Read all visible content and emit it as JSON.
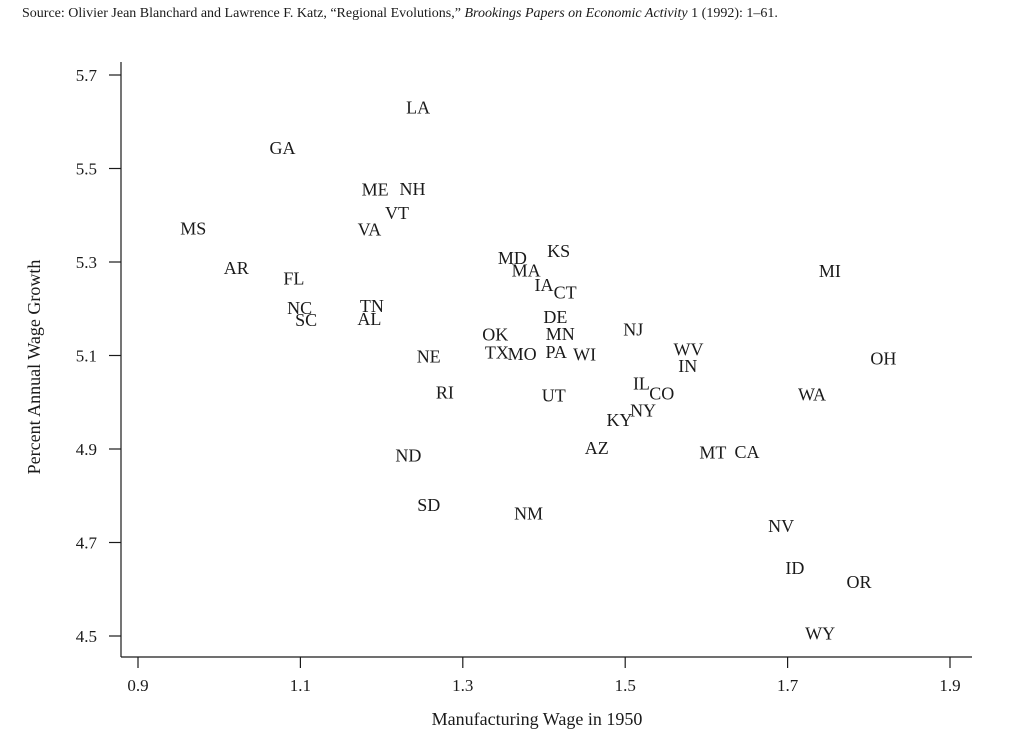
{
  "source": {
    "prefix": "Source: Olivier Jean Blanchard and Lawrence F. Katz, “Regional Evolutions,” ",
    "journal": "Brookings Papers on Economic Activity",
    "suffix": " 1 (1992): 1–61."
  },
  "chart_data": {
    "type": "scatter",
    "xlabel": "Manufacturing Wage in 1950",
    "ylabel": "Percent Annual Wage Growth",
    "xlim": [
      0.9,
      1.9
    ],
    "ylim": [
      4.5,
      5.7
    ],
    "xticks": [
      "0.9",
      "1.1",
      "1.3",
      "1.5",
      "1.7",
      "1.9"
    ],
    "yticks": [
      "4.5",
      "4.7",
      "4.9",
      "5.1",
      "5.3",
      "5.5",
      "5.7"
    ],
    "grid": false,
    "points": [
      {
        "label": "LA",
        "x": 1.245,
        "y": 5.63
      },
      {
        "label": "GA",
        "x": 1.078,
        "y": 5.544
      },
      {
        "label": "ME",
        "x": 1.192,
        "y": 5.455
      },
      {
        "label": "NH",
        "x": 1.238,
        "y": 5.456
      },
      {
        "label": "VT",
        "x": 1.219,
        "y": 5.405
      },
      {
        "label": "VA",
        "x": 1.185,
        "y": 5.369
      },
      {
        "label": "MS",
        "x": 0.968,
        "y": 5.372
      },
      {
        "label": "AR",
        "x": 1.021,
        "y": 5.287
      },
      {
        "label": "FL",
        "x": 1.092,
        "y": 5.265
      },
      {
        "label": "NC",
        "x": 1.099,
        "y": 5.202
      },
      {
        "label": "SC",
        "x": 1.107,
        "y": 5.176
      },
      {
        "label": "TN",
        "x": 1.188,
        "y": 5.206
      },
      {
        "label": "AL",
        "x": 1.185,
        "y": 5.178
      },
      {
        "label": "MD",
        "x": 1.361,
        "y": 5.309
      },
      {
        "label": "MA",
        "x": 1.378,
        "y": 5.282
      },
      {
        "label": "KS",
        "x": 1.418,
        "y": 5.323
      },
      {
        "label": "IA",
        "x": 1.4,
        "y": 5.251
      },
      {
        "label": "CT",
        "x": 1.426,
        "y": 5.235
      },
      {
        "label": "DE",
        "x": 1.414,
        "y": 5.182
      },
      {
        "label": "MN",
        "x": 1.42,
        "y": 5.146
      },
      {
        "label": "NJ",
        "x": 1.51,
        "y": 5.156
      },
      {
        "label": "OK",
        "x": 1.34,
        "y": 5.145
      },
      {
        "label": "TX",
        "x": 1.342,
        "y": 5.106
      },
      {
        "label": "MO",
        "x": 1.373,
        "y": 5.103
      },
      {
        "label": "PA",
        "x": 1.415,
        "y": 5.107
      },
      {
        "label": "WI",
        "x": 1.45,
        "y": 5.102
      },
      {
        "label": "WV",
        "x": 1.578,
        "y": 5.113
      },
      {
        "label": "IN",
        "x": 1.577,
        "y": 5.078
      },
      {
        "label": "MI",
        "x": 1.752,
        "y": 5.281
      },
      {
        "label": "OH",
        "x": 1.818,
        "y": 5.094
      },
      {
        "label": "NE",
        "x": 1.258,
        "y": 5.098
      },
      {
        "label": "RI",
        "x": 1.278,
        "y": 5.021
      },
      {
        "label": "UT",
        "x": 1.412,
        "y": 5.014
      },
      {
        "label": "IL",
        "x": 1.52,
        "y": 5.04
      },
      {
        "label": "CO",
        "x": 1.545,
        "y": 5.019
      },
      {
        "label": "NY",
        "x": 1.522,
        "y": 4.982
      },
      {
        "label": "KY",
        "x": 1.493,
        "y": 4.962
      },
      {
        "label": "WA",
        "x": 1.73,
        "y": 5.017
      },
      {
        "label": "AZ",
        "x": 1.465,
        "y": 4.902
      },
      {
        "label": "MT",
        "x": 1.608,
        "y": 4.893
      },
      {
        "label": "CA",
        "x": 1.65,
        "y": 4.894
      },
      {
        "label": "ND",
        "x": 1.233,
        "y": 4.886
      },
      {
        "label": "SD",
        "x": 1.258,
        "y": 4.78
      },
      {
        "label": "NM",
        "x": 1.381,
        "y": 4.762
      },
      {
        "label": "NV",
        "x": 1.692,
        "y": 4.735
      },
      {
        "label": "ID",
        "x": 1.709,
        "y": 4.645
      },
      {
        "label": "OR",
        "x": 1.788,
        "y": 4.615
      },
      {
        "label": "WY",
        "x": 1.74,
        "y": 4.505
      }
    ]
  }
}
